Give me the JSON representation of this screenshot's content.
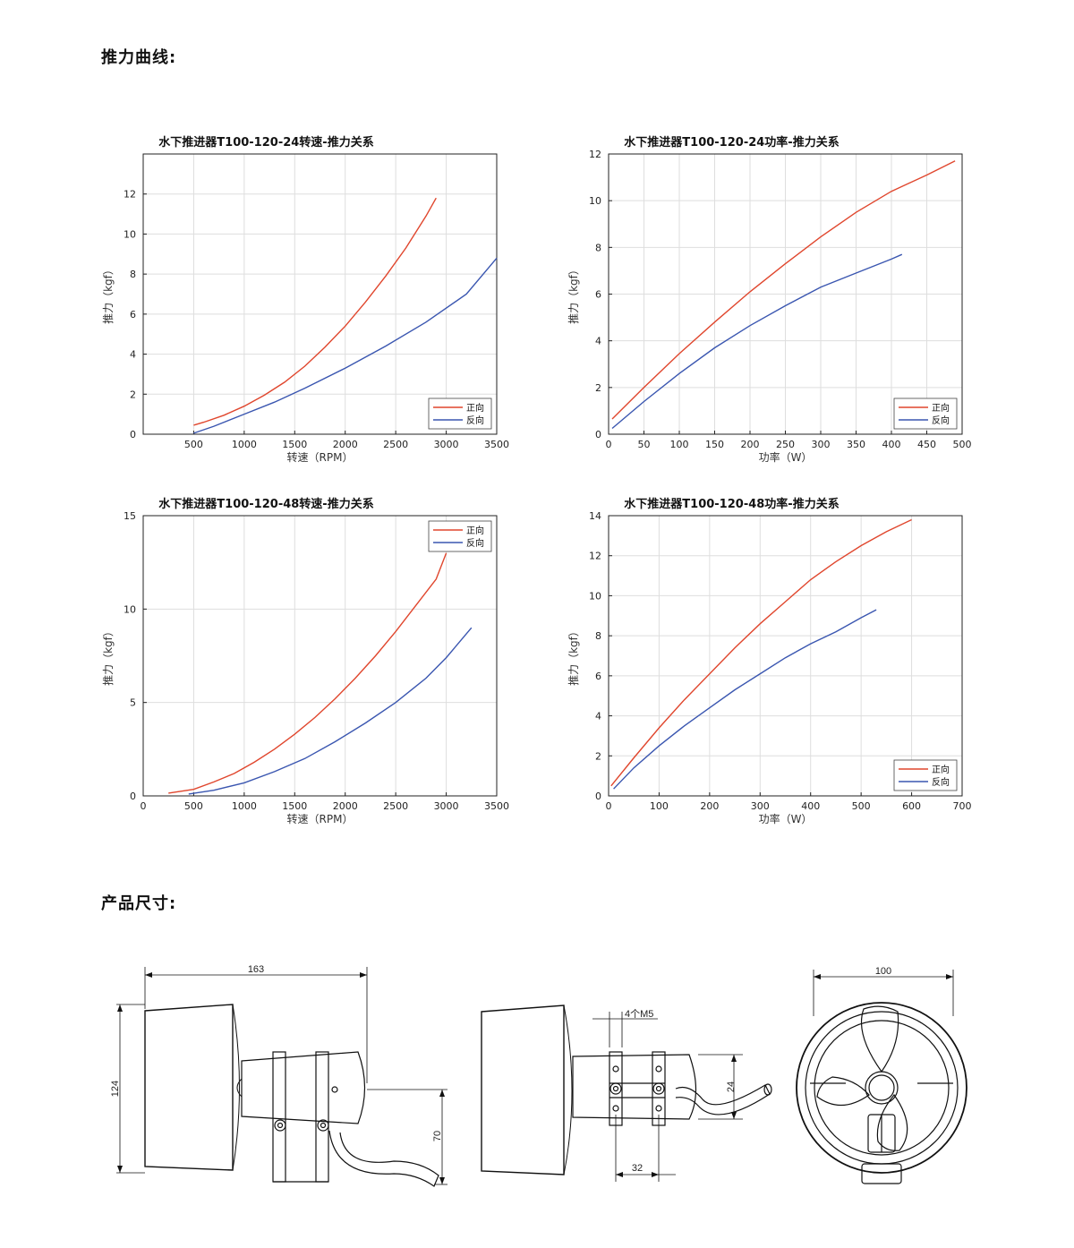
{
  "sections": {
    "thrust_curve_heading": "推力曲线:",
    "dimensions_heading": "产品尺寸:"
  },
  "colors": {
    "forward": "#e0462d",
    "reverse": "#3a56b0",
    "grid": "#dedede",
    "axis": "#222222"
  },
  "chart_data": [
    {
      "type": "line",
      "title": "水下推进器T100-120-24转速-推力关系",
      "xlabel": "转速（RPM）",
      "ylabel": "推力（kgf）",
      "xlim": [
        0,
        3500
      ],
      "ylim": [
        0,
        14
      ],
      "xticks": [
        500,
        1000,
        1500,
        2000,
        2500,
        3000,
        3500
      ],
      "yticks": [
        0,
        2,
        4,
        6,
        8,
        10,
        12
      ],
      "grid": true,
      "legend": "bottom-right",
      "series": [
        {
          "name": "正向",
          "x": [
            500,
            600,
            800,
            1000,
            1200,
            1400,
            1600,
            1800,
            2000,
            2200,
            2400,
            2600,
            2800,
            2900
          ],
          "y": [
            0.45,
            0.6,
            0.95,
            1.4,
            1.95,
            2.6,
            3.4,
            4.35,
            5.4,
            6.6,
            7.9,
            9.3,
            10.9,
            11.8
          ]
        },
        {
          "name": "反向",
          "x": [
            500,
            700,
            1000,
            1300,
            1600,
            2000,
            2400,
            2800,
            3200,
            3500
          ],
          "y": [
            0.05,
            0.4,
            1.0,
            1.6,
            2.3,
            3.3,
            4.4,
            5.6,
            7.0,
            8.8
          ]
        }
      ]
    },
    {
      "type": "line",
      "title": "水下推进器T100-120-24功率-推力关系",
      "xlabel": "功率（W）",
      "ylabel": "推力（kgf）",
      "xlim": [
        0,
        500
      ],
      "ylim": [
        0,
        12
      ],
      "xticks": [
        0,
        50,
        100,
        150,
        200,
        250,
        300,
        350,
        400,
        450,
        500
      ],
      "yticks": [
        0,
        2,
        4,
        6,
        8,
        10,
        12
      ],
      "grid": true,
      "legend": "bottom-right",
      "series": [
        {
          "name": "正向",
          "x": [
            5,
            50,
            100,
            150,
            200,
            250,
            300,
            350,
            400,
            450,
            490
          ],
          "y": [
            0.65,
            2.0,
            3.45,
            4.8,
            6.1,
            7.3,
            8.45,
            9.5,
            10.4,
            11.1,
            11.7
          ]
        },
        {
          "name": "反向",
          "x": [
            5,
            50,
            100,
            150,
            200,
            250,
            300,
            350,
            400,
            415
          ],
          "y": [
            0.25,
            1.4,
            2.6,
            3.7,
            4.65,
            5.5,
            6.3,
            6.9,
            7.5,
            7.7
          ]
        }
      ]
    },
    {
      "type": "line",
      "title": "水下推进器T100-120-48转速-推力关系",
      "xlabel": "转速（RPM）",
      "ylabel": "推力（kgf）",
      "xlim": [
        0,
        3500
      ],
      "ylim": [
        0,
        15
      ],
      "xticks": [
        0,
        500,
        1000,
        1500,
        2000,
        2500,
        3000,
        3500
      ],
      "yticks": [
        0,
        5,
        10,
        15
      ],
      "grid": true,
      "legend": "top-right",
      "series": [
        {
          "name": "正向",
          "x": [
            250,
            500,
            700,
            900,
            1100,
            1300,
            1500,
            1700,
            1900,
            2100,
            2300,
            2500,
            2700,
            2900,
            3000
          ],
          "y": [
            0.15,
            0.35,
            0.75,
            1.2,
            1.8,
            2.5,
            3.3,
            4.2,
            5.2,
            6.3,
            7.5,
            8.8,
            10.2,
            11.6,
            13.0
          ]
        },
        {
          "name": "反向",
          "x": [
            450,
            700,
            1000,
            1300,
            1600,
            1900,
            2200,
            2500,
            2800,
            3000,
            3250
          ],
          "y": [
            0.1,
            0.3,
            0.7,
            1.3,
            2.0,
            2.9,
            3.9,
            5.0,
            6.3,
            7.4,
            9.0
          ]
        }
      ]
    },
    {
      "type": "line",
      "title": "水下推进器T100-120-48功率-推力关系",
      "xlabel": "功率（W）",
      "ylabel": "推力（kgf）",
      "xlim": [
        0,
        700
      ],
      "ylim": [
        0,
        14
      ],
      "xticks": [
        0,
        100,
        200,
        300,
        400,
        500,
        600,
        700
      ],
      "yticks": [
        0,
        2,
        4,
        6,
        8,
        10,
        12,
        14
      ],
      "grid": true,
      "legend": "bottom-right",
      "series": [
        {
          "name": "正向",
          "x": [
            5,
            50,
            100,
            150,
            200,
            250,
            300,
            350,
            400,
            450,
            500,
            550,
            600
          ],
          "y": [
            0.5,
            1.9,
            3.4,
            4.8,
            6.1,
            7.4,
            8.6,
            9.7,
            10.8,
            11.7,
            12.5,
            13.2,
            13.8
          ]
        },
        {
          "name": "反向",
          "x": [
            10,
            50,
            100,
            150,
            200,
            250,
            300,
            350,
            400,
            450,
            500,
            530
          ],
          "y": [
            0.35,
            1.4,
            2.5,
            3.5,
            4.4,
            5.3,
            6.1,
            6.9,
            7.6,
            8.2,
            8.9,
            9.3
          ]
        }
      ]
    }
  ],
  "drawings": {
    "side_view": {
      "length": "163",
      "diameter": "124",
      "height": "70"
    },
    "top_view": {
      "holes": "4个M5",
      "offset": "24",
      "spacing": "32"
    },
    "front_view": {
      "diameter": "100"
    }
  }
}
